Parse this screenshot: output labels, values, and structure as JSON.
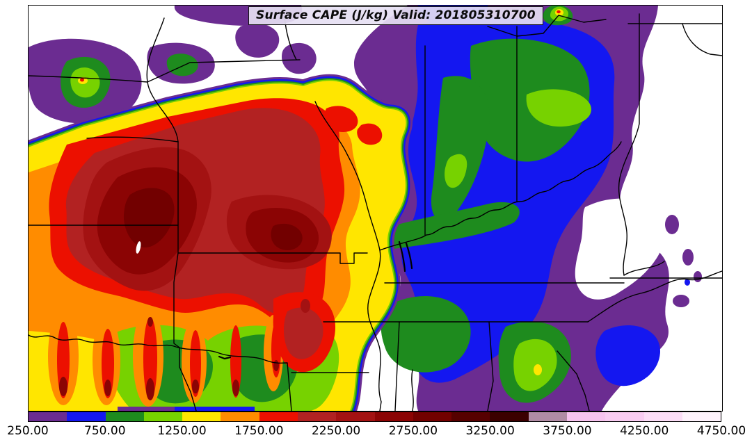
{
  "title_overlay": {
    "text": "Surface CAPE (J/kg) Valid: 201805310700"
  },
  "chart_data": {
    "type": "heatmap",
    "subtype": "filled-contour-weather-map",
    "title": "Surface CAPE (J/kg) Valid: 201805310700",
    "variable": "Surface CAPE",
    "units": "J/kg",
    "valid_time": "201805310700",
    "region": "Central and eastern United States with state boundaries",
    "value_min": 250,
    "value_max": 4750,
    "contour_interval": 250,
    "levels": [
      250,
      500,
      750,
      1000,
      1250,
      1500,
      1750,
      2000,
      2250,
      2500,
      2750,
      3000,
      3250,
      3500,
      3750,
      4000,
      4250,
      4500,
      4750
    ],
    "colorbar": {
      "orientation": "horizontal",
      "position": "bottom",
      "tick_values": [
        250,
        750,
        1250,
        1750,
        2250,
        2750,
        3250,
        3750,
        4250,
        4750
      ],
      "tick_labels": [
        "250.00",
        "750.00",
        "1250.00",
        "1750.00",
        "2250.00",
        "2750.00",
        "3250.00",
        "3750.00",
        "4250.00",
        "4750.00"
      ],
      "segments": [
        {
          "from": 250,
          "to": 500,
          "color": "#6B2C91"
        },
        {
          "from": 500,
          "to": 750,
          "color": "#1417F0"
        },
        {
          "from": 750,
          "to": 1000,
          "color": "#1E8B1E"
        },
        {
          "from": 1000,
          "to": 1250,
          "color": "#77D200"
        },
        {
          "from": 1250,
          "to": 1500,
          "color": "#FFE600"
        },
        {
          "from": 1500,
          "to": 1750,
          "color": "#FF8C00"
        },
        {
          "from": 1750,
          "to": 2000,
          "color": "#EC1000"
        },
        {
          "from": 2000,
          "to": 2250,
          "color": "#B22222"
        },
        {
          "from": 2250,
          "to": 2500,
          "color": "#A31212"
        },
        {
          "from": 2500,
          "to": 2750,
          "color": "#8B0404"
        },
        {
          "from": 2750,
          "to": 3000,
          "color": "#720000"
        },
        {
          "from": 3000,
          "to": 3250,
          "color": "#560000"
        },
        {
          "from": 3250,
          "to": 3500,
          "color": "#3B0000"
        },
        {
          "from": 3500,
          "to": 3750,
          "color": "#B08CA4"
        },
        {
          "from": 3750,
          "to": 4000,
          "color": "#F6C3EE"
        },
        {
          "from": 4000,
          "to": 4250,
          "color": "#F8CCF1"
        },
        {
          "from": 4250,
          "to": 4500,
          "color": "#FBDDF6"
        },
        {
          "from": 4500,
          "to": 4750,
          "color": "#FEF3FC"
        }
      ],
      "below_min_color": "#FFFFFF"
    },
    "features": [
      {
        "area": "Kansas / western Missouri / northern Oklahoma",
        "value": "2250-3000 J/kg dark-red maximum core"
      },
      {
        "area": "Corridor northeast through Missouri into Illinois",
        "value": "1500-2250 J/kg"
      },
      {
        "area": "Oklahoma / north Texas",
        "value": "alternating 1000-2250 J/kg streaks with embedded higher cells"
      },
      {
        "area": "Ohio Valley, Indiana-Ohio, Tennessee / Alabama",
        "value": "500-1250 J/kg (blue/green)"
      },
      {
        "area": "Appalachians and eastern edge",
        "value": "250-500 J/kg (purple) fading to below 250 (white)"
      },
      {
        "area": "Upper Midwest (Minnesota / Wisconsin patches)",
        "value": "isolated 250-1250 J/kg patches"
      }
    ]
  },
  "map": {
    "background_color": "#FFFFFF",
    "frame_color": "#000000",
    "state_border_color": "#000000"
  }
}
